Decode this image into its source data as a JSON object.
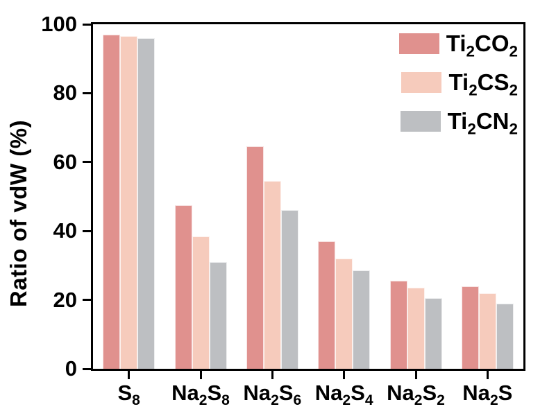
{
  "figure": {
    "background": "#ffffff",
    "frame_color": "#000000",
    "text_color": "#000000"
  },
  "chart_data": {
    "type": "bar",
    "title": "",
    "xlabel": "",
    "ylabel": "Ratio of vdW (%)",
    "ylim": [
      0,
      100
    ],
    "yticks": [
      0,
      20,
      40,
      60,
      80,
      100
    ],
    "grid": false,
    "legend_position": "top-right-inside",
    "categories": [
      "S_8",
      "Na_2S_8",
      "Na_2S_6",
      "Na_2S_4",
      "Na_2S_2",
      "Na_2S"
    ],
    "series": [
      {
        "name": "Ti_2CO_2",
        "color": "#E0918E",
        "values": [
          97,
          47.5,
          64.5,
          37,
          25.5,
          24
        ]
      },
      {
        "name": "Ti_2CS_2",
        "color": "#F6CBBC",
        "values": [
          96.5,
          38.5,
          54.5,
          32,
          23.5,
          22
        ]
      },
      {
        "name": "Ti_2CN_2",
        "color": "#BDBFC2",
        "values": [
          96,
          31,
          46,
          28.5,
          20.5,
          19
        ]
      }
    ]
  }
}
